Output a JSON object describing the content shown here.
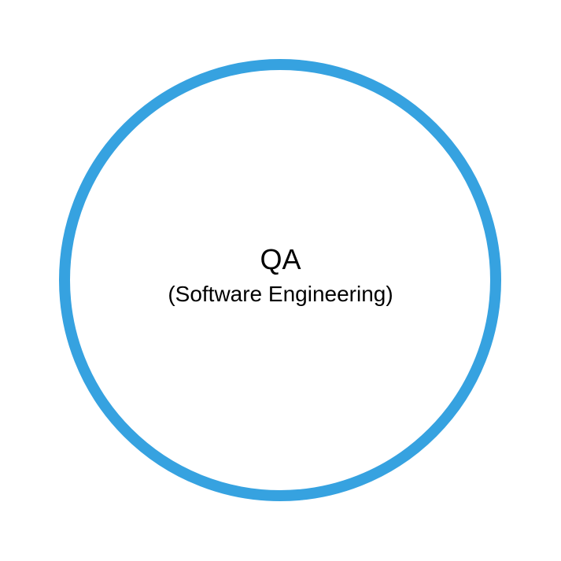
{
  "diagram": {
    "node": {
      "title": "QA",
      "subtitle": "(Software Engineering)"
    },
    "colors": {
      "ring": "#36a2e0",
      "text": "#000000",
      "background": "#ffffff"
    }
  }
}
